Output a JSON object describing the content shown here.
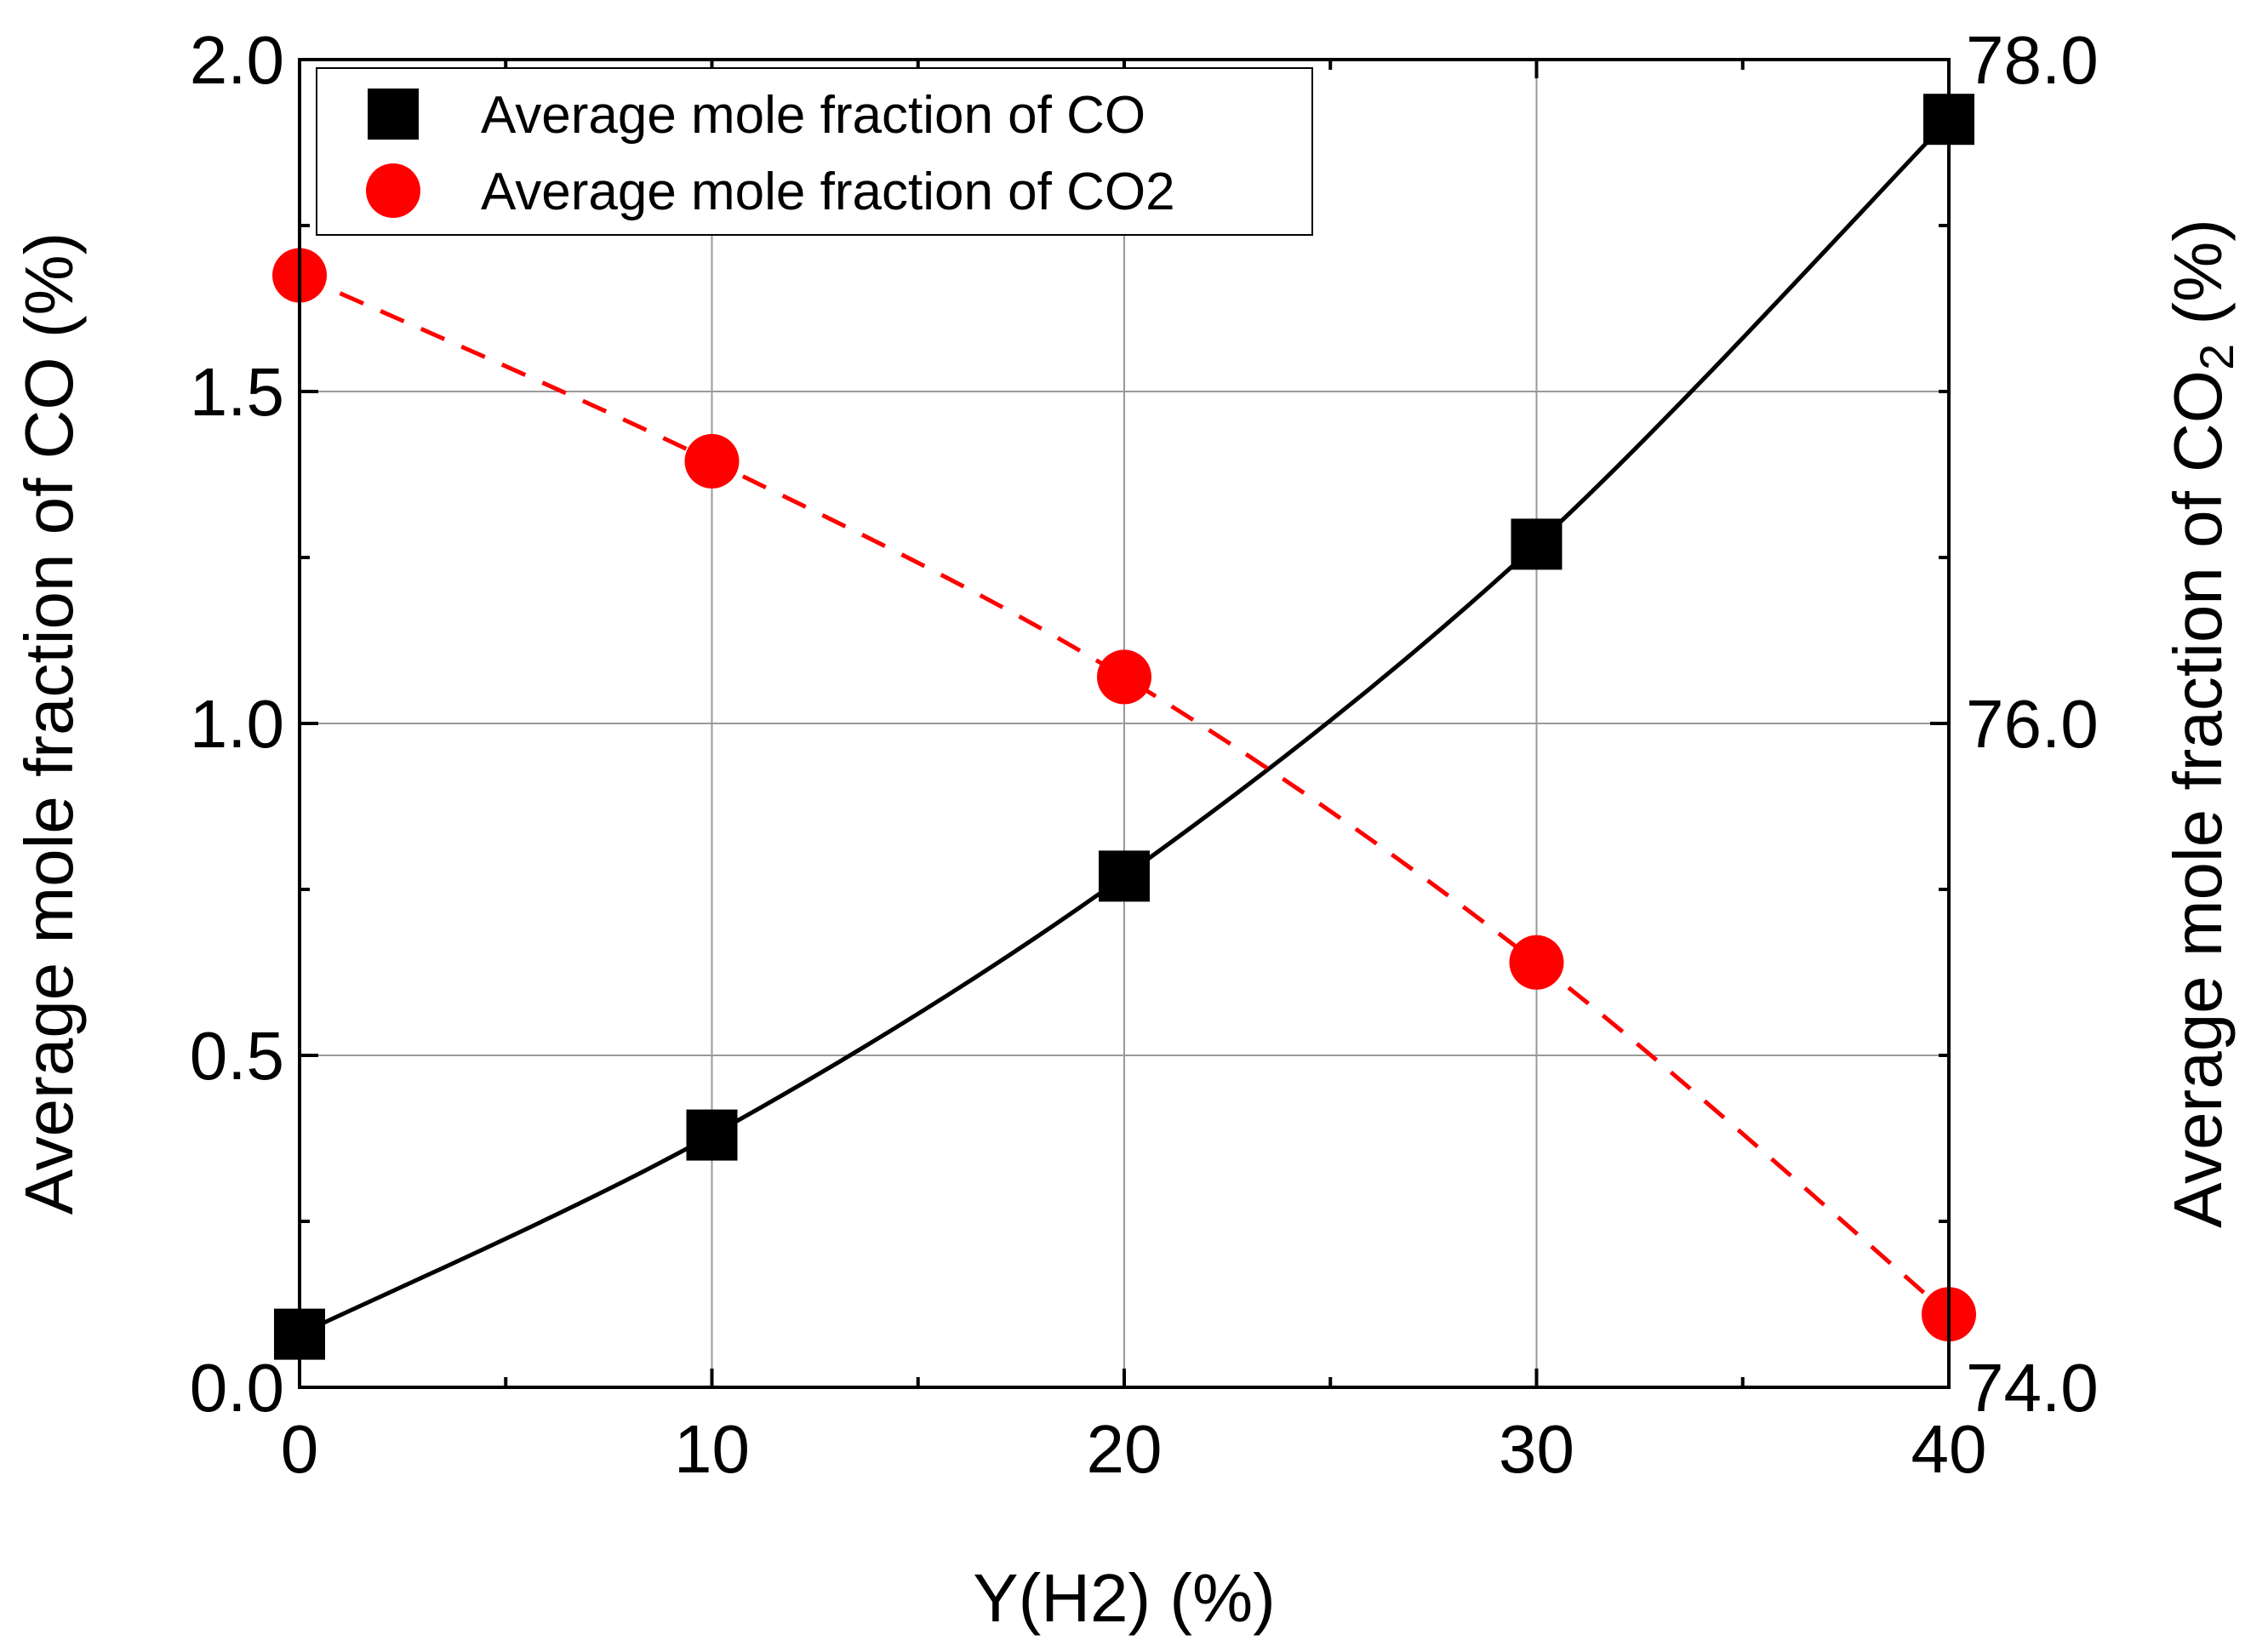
{
  "chart_data": {
    "type": "scatter",
    "title": "",
    "xlabel": "Y(H2) (%)",
    "ylabel_left": "Average mole fraction of CO (%)",
    "ylabel_right": {
      "prefix": "Average mole fraction of CO",
      "subscript": "2",
      "suffix": " (%)"
    },
    "xlim": [
      0,
      40
    ],
    "ylim_left": [
      0,
      2.0
    ],
    "ylim_right": [
      74.0,
      78.0
    ],
    "x_ticks": [
      0,
      10,
      20,
      30,
      40
    ],
    "x_tick_labels": [
      "0",
      "10",
      "20",
      "30",
      "40"
    ],
    "y_left_ticks": [
      0,
      0.5,
      1.0,
      1.5,
      2.0
    ],
    "y_left_tick_labels": [
      "0.0",
      "0.5",
      "1.0",
      "1.5",
      "2.0"
    ],
    "y_right_ticks": [
      74.0,
      76.0,
      78.0
    ],
    "y_right_tick_labels": [
      "74.0",
      "76.0",
      "78.0"
    ],
    "grid": true,
    "legend_position": "top-left",
    "series": [
      {
        "name": "Average mole fraction of CO",
        "axis": "left",
        "marker": "square",
        "color": "#000000",
        "line_style": "solid",
        "x": [
          0,
          10,
          20,
          30,
          40
        ],
        "values": [
          0.08,
          0.38,
          0.77,
          1.27,
          1.91
        ]
      },
      {
        "name": "Average mole fraction of CO2",
        "axis": "right",
        "marker": "circle",
        "color": "#ff0000",
        "line_style": "dashed",
        "x": [
          0,
          10,
          20,
          30,
          40
        ],
        "values": [
          77.35,
          76.79,
          76.14,
          75.28,
          74.22
        ]
      }
    ]
  }
}
